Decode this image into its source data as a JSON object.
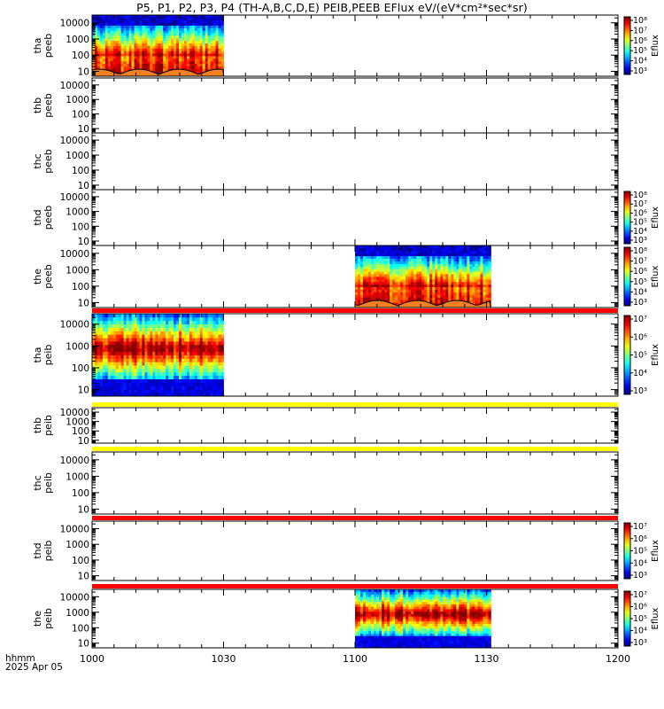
{
  "title": "P5, P1, P2, P3, P4 (TH-A,B,C,D,E) PEIB,PEEB EFlux eV/(eV*cm²*sec*sr)",
  "footer": {
    "line1": "hhmm",
    "line2": "2025 Apr 05"
  },
  "colors": {
    "status_red": "#ff0000",
    "status_yellow": "#ffff00",
    "scpot": "#f08020"
  },
  "chart_data": {
    "type": "heatmap",
    "x_axis": {
      "label": "hhmm",
      "range": [
        "10:00",
        "12:00"
      ],
      "tick_labels": [
        "1000",
        "1030",
        "1100",
        "1130",
        "1200"
      ]
    },
    "y_axis": {
      "scale": "log",
      "range_eV": [
        5,
        30000
      ],
      "tick_labels": [
        "10",
        "100",
        "1000",
        "10000"
      ]
    },
    "panels": [
      {
        "probe": "tha",
        "label": [
          "tha",
          "peeb"
        ],
        "species": "electrons",
        "data_intervals": [
          [
            "10:00",
            "10:30"
          ]
        ],
        "scpot_overlay": true,
        "colorbar": {
          "label": "Eflux",
          "min_exp": 3,
          "max_exp": 8,
          "tick_labels": [
            "10⁸",
            "10⁷",
            "10⁶",
            "10⁵",
            "10⁴",
            "10³"
          ]
        }
      },
      {
        "probe": "thb",
        "label": [
          "thb",
          "peeb"
        ],
        "species": "electrons",
        "data_intervals": []
      },
      {
        "probe": "thc",
        "label": [
          "thc",
          "peeb"
        ],
        "species": "electrons",
        "data_intervals": []
      },
      {
        "probe": "thd",
        "label": [
          "thd",
          "peeb"
        ],
        "species": "electrons",
        "data_intervals": [],
        "colorbar": {
          "label": "Eflux",
          "min_exp": 3,
          "max_exp": 8,
          "tick_labels": [
            "10⁸",
            "10⁷",
            "10⁶",
            "10⁵",
            "10⁴",
            "10³"
          ]
        }
      },
      {
        "probe": "the",
        "label": [
          "the",
          "peeb"
        ],
        "species": "electrons",
        "data_intervals": [
          [
            "11:00",
            "11:31"
          ]
        ],
        "scpot_overlay": true,
        "colorbar": {
          "label": "Eflux",
          "min_exp": 3,
          "max_exp": 8,
          "tick_labels": [
            "10⁸",
            "10⁷",
            "10⁶",
            "10⁵",
            "10⁴",
            "10³"
          ]
        }
      },
      {
        "probe": "tha",
        "label": [
          "tha",
          "peib"
        ],
        "species": "ions",
        "data_intervals": [
          [
            "10:00",
            "10:30"
          ]
        ],
        "status_bar": "red",
        "colorbar": {
          "label": "Eflux",
          "min_exp": 3,
          "max_exp": 7,
          "tick_labels": [
            "10⁷",
            "10⁶",
            "10⁵",
            "10⁴",
            "10³"
          ]
        }
      },
      {
        "probe": "thb",
        "label": [
          "thb",
          "peib"
        ],
        "species": "ions",
        "data_intervals": [],
        "status_bar": "yellow"
      },
      {
        "probe": "thc",
        "label": [
          "thc",
          "peib"
        ],
        "species": "ions",
        "data_intervals": [],
        "status_bar": "yellow"
      },
      {
        "probe": "thd",
        "label": [
          "thd",
          "peib"
        ],
        "species": "ions",
        "data_intervals": [],
        "status_bar": "red",
        "colorbar": {
          "label": "Eflux",
          "min_exp": 3,
          "max_exp": 7,
          "tick_labels": [
            "10⁷",
            "10⁶",
            "10⁵",
            "10⁴",
            "10³"
          ]
        }
      },
      {
        "probe": "the",
        "label": [
          "the",
          "peib"
        ],
        "species": "ions",
        "data_intervals": [
          [
            "11:00",
            "11:31"
          ]
        ],
        "status_bar": "red",
        "colorbar": {
          "label": "Eflux",
          "min_exp": 3,
          "max_exp": 7,
          "tick_labels": [
            "10⁷",
            "10⁶",
            "10⁵",
            "10⁴",
            "10³"
          ]
        }
      }
    ]
  }
}
